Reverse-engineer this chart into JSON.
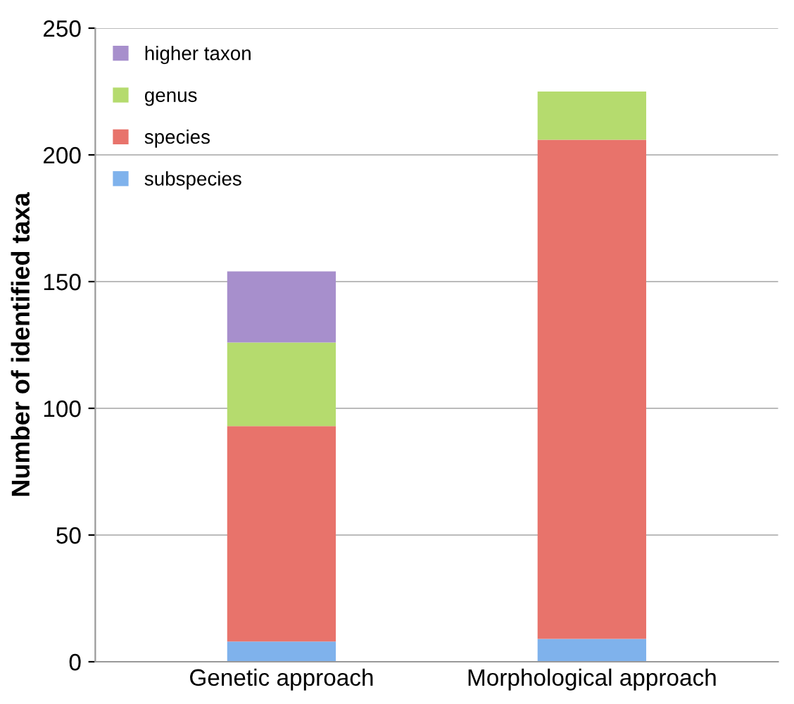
{
  "chart_data": {
    "type": "bar",
    "stacked": true,
    "ylabel": "Number of identified taxa",
    "categories": [
      "Genetic approach",
      "Morphological approach"
    ],
    "series": [
      {
        "name": "subspecies",
        "color": "#7fb2ec",
        "values": [
          8,
          9
        ]
      },
      {
        "name": "species",
        "color": "#e8736b",
        "values": [
          85,
          197
        ]
      },
      {
        "name": "genus",
        "color": "#b5db6e",
        "values": [
          33,
          19
        ]
      },
      {
        "name": "higher taxon",
        "color": "#a78fcc",
        "values": [
          28,
          0
        ]
      }
    ],
    "ylim": [
      0,
      250
    ],
    "yticks": [
      0,
      50,
      100,
      150,
      200,
      250
    ],
    "grid": "y",
    "legend": "top left"
  }
}
